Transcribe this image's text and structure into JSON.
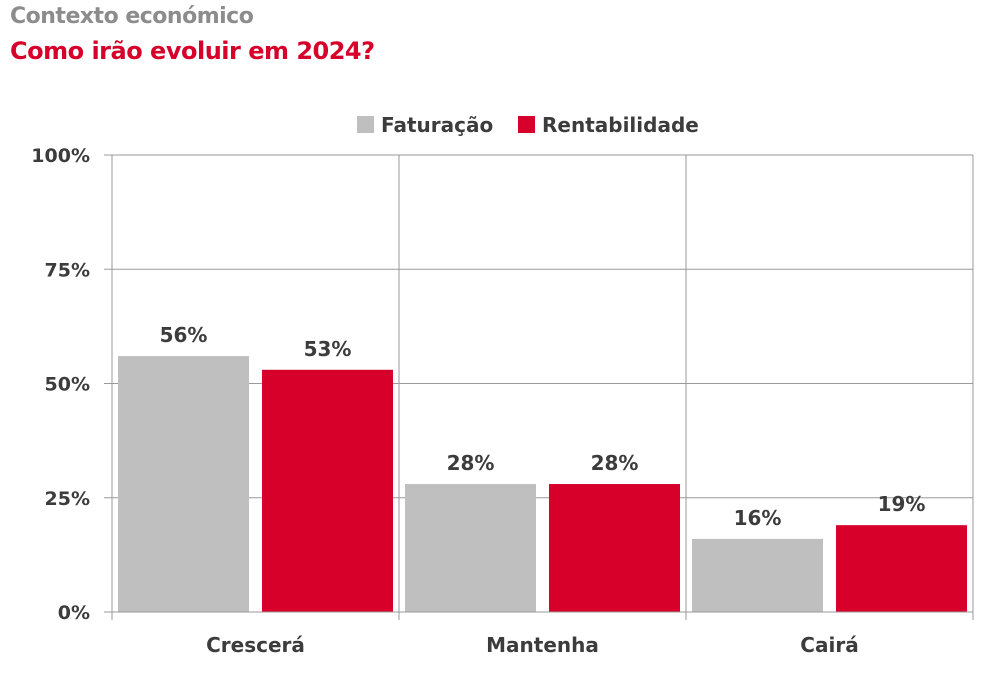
{
  "header": {
    "suptitle": "Contexto económico",
    "title": "Como irão evoluir em 2024?"
  },
  "chart_data": {
    "type": "bar",
    "categories": [
      "Crescerá",
      "Mantenha",
      "Cairá"
    ],
    "series": [
      {
        "name": "Faturação",
        "color": "#bfbfbf",
        "values": [
          56,
          28,
          16
        ]
      },
      {
        "name": "Rentabilidade",
        "color": "#d7002a",
        "values": [
          53,
          28,
          19
        ]
      }
    ],
    "ylim": [
      0,
      100
    ],
    "yticks": [
      0,
      25,
      50,
      75,
      100
    ],
    "ytick_labels": [
      "0%",
      "25%",
      "50%",
      "75%",
      "100%"
    ],
    "value_suffix": "%",
    "grid": true,
    "legend": "top-center"
  }
}
